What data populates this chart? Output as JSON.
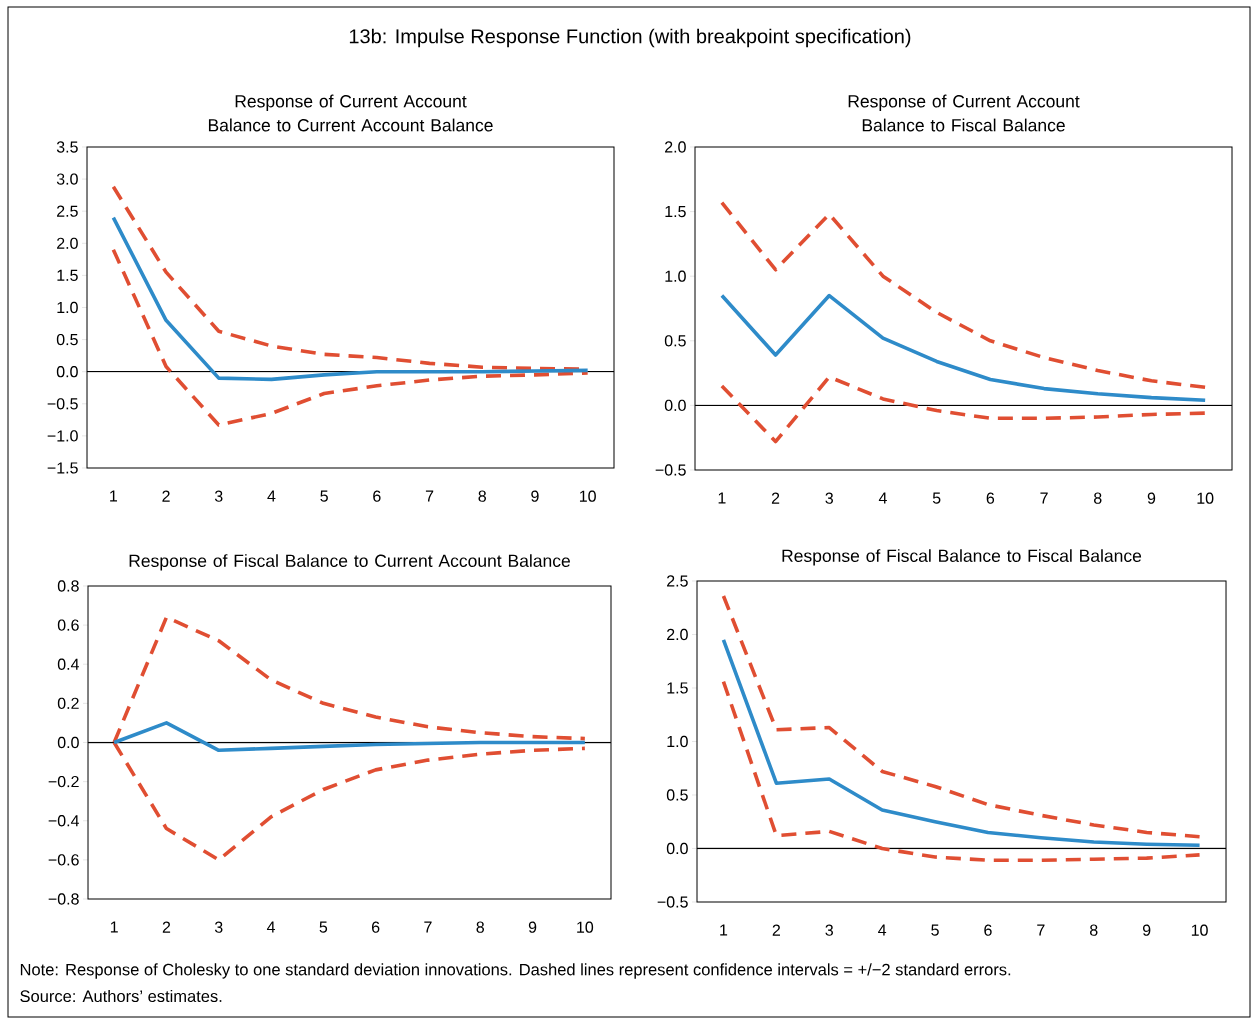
{
  "chart_data": [
    {
      "type": "other",
      "title": "13b: Impulse Response Function (with breakpoint specification)",
      "annotations": [
        "Note: Response of Cholesky to one standard deviation innovations. Dashed lines represent confidence intervals = +/−2 standard errors.",
        "Source: Authors’ estimates."
      ]
    },
    {
      "type": "line",
      "title": "Response of Current Account Balance to Current Account Balance",
      "categories": [
        "1",
        "2",
        "3",
        "4",
        "5",
        "6",
        "7",
        "8",
        "9",
        "10"
      ],
      "ylim": [
        -1.5,
        3.5
      ],
      "yticks": [
        {
          "value": -1.5,
          "label": "−1.5"
        },
        {
          "value": -1.0,
          "label": "−1.0"
        },
        {
          "value": -0.5,
          "label": "−0.5"
        },
        {
          "value": 0,
          "label": "0.0"
        },
        {
          "value": 0.5,
          "label": "0.5"
        },
        {
          "value": 1.0,
          "label": "1.0"
        },
        {
          "value": 1.5,
          "label": "1.5"
        },
        {
          "value": 2.0,
          "label": "2.0"
        },
        {
          "value": 2.5,
          "label": "2.5"
        },
        {
          "value": 3.0,
          "label": "3.0"
        },
        {
          "value": 3.5,
          "label": "3.5"
        }
      ],
      "ref_lines": [
        {
          "axis": "y",
          "value": 0,
          "color": "#000000"
        }
      ],
      "series": [
        {
          "color": "#e04e32",
          "line_style": "dashed",
          "values": [
            2.88,
            1.55,
            0.63,
            0.4,
            0.27,
            0.22,
            0.13,
            0.07,
            0.05,
            0.04
          ]
        },
        {
          "color": "#e04e32",
          "line_style": "dashed",
          "values": [
            1.9,
            0.08,
            -0.83,
            -0.65,
            -0.34,
            -0.22,
            -0.13,
            -0.07,
            -0.05,
            -0.02
          ]
        },
        {
          "color": "#2e8bc9",
          "line_style": "solid",
          "values": [
            2.4,
            0.8,
            -0.1,
            -0.12,
            -0.05,
            0.0,
            0.0,
            0.0,
            0.01,
            0.02
          ]
        }
      ]
    },
    {
      "type": "line",
      "title": "Response of Current Account Balance to Fiscal Balance",
      "categories": [
        "1",
        "2",
        "3",
        "4",
        "5",
        "6",
        "7",
        "8",
        "9",
        "10"
      ],
      "ylim": [
        -0.5,
        2.0
      ],
      "yticks": [
        {
          "value": -0.5,
          "label": "−0.5"
        },
        {
          "value": 0,
          "label": "0.0"
        },
        {
          "value": 0.5,
          "label": "0.5"
        },
        {
          "value": 1.0,
          "label": "1.0"
        },
        {
          "value": 1.5,
          "label": "1.5"
        },
        {
          "value": 2.0,
          "label": "2.0"
        }
      ],
      "ref_lines": [
        {
          "axis": "y",
          "value": 0,
          "color": "#000000"
        }
      ],
      "series": [
        {
          "color": "#e04e32",
          "line_style": "dashed",
          "values": [
            1.57,
            1.05,
            1.48,
            1.0,
            0.72,
            0.5,
            0.37,
            0.27,
            0.19,
            0.14
          ]
        },
        {
          "color": "#e04e32",
          "line_style": "dashed",
          "values": [
            0.15,
            -0.28,
            0.22,
            0.05,
            -0.04,
            -0.1,
            -0.1,
            -0.09,
            -0.07,
            -0.06
          ]
        },
        {
          "color": "#2e8bc9",
          "line_style": "solid",
          "values": [
            0.85,
            0.39,
            0.85,
            0.52,
            0.34,
            0.2,
            0.13,
            0.09,
            0.06,
            0.04
          ]
        }
      ]
    },
    {
      "type": "line",
      "title": "Response of Fiscal Balance to Current Account Balance",
      "categories": [
        "1",
        "2",
        "3",
        "4",
        "5",
        "6",
        "7",
        "8",
        "9",
        "10"
      ],
      "ylim": [
        -0.8,
        0.8
      ],
      "yticks": [
        {
          "value": -0.8,
          "label": "−0.8"
        },
        {
          "value": -0.6,
          "label": "−0.6"
        },
        {
          "value": -0.4,
          "label": "−0.4"
        },
        {
          "value": -0.2,
          "label": "−0.2"
        },
        {
          "value": 0,
          "label": "0.0"
        },
        {
          "value": 0.2,
          "label": "0.2"
        },
        {
          "value": 0.4,
          "label": "0.4"
        },
        {
          "value": 0.6,
          "label": "0.6"
        },
        {
          "value": 0.8,
          "label": "0.8"
        }
      ],
      "ref_lines": [
        {
          "axis": "y",
          "value": 0,
          "color": "#000000"
        }
      ],
      "series": [
        {
          "color": "#e04e32",
          "line_style": "dashed",
          "values": [
            0.0,
            0.64,
            0.52,
            0.32,
            0.2,
            0.13,
            0.08,
            0.05,
            0.03,
            0.02
          ]
        },
        {
          "color": "#e04e32",
          "line_style": "dashed",
          "values": [
            0.0,
            -0.44,
            -0.6,
            -0.38,
            -0.24,
            -0.14,
            -0.09,
            -0.06,
            -0.04,
            -0.03
          ]
        },
        {
          "color": "#2e8bc9",
          "line_style": "solid",
          "values": [
            0.0,
            0.1,
            -0.04,
            -0.03,
            -0.02,
            -0.01,
            -0.005,
            0.0,
            0.0,
            0.0
          ]
        }
      ]
    },
    {
      "type": "line",
      "title": "Response of Fiscal Balance to Fiscal Balance",
      "categories": [
        "1",
        "2",
        "3",
        "4",
        "5",
        "6",
        "7",
        "8",
        "9",
        "10"
      ],
      "ylim": [
        -0.5,
        2.5
      ],
      "yticks": [
        {
          "value": -0.5,
          "label": "−0.5"
        },
        {
          "value": 0,
          "label": "0.0"
        },
        {
          "value": 0.5,
          "label": "0.5"
        },
        {
          "value": 1.0,
          "label": "1.0"
        },
        {
          "value": 1.5,
          "label": "1.5"
        },
        {
          "value": 2.0,
          "label": "2.0"
        },
        {
          "value": 2.5,
          "label": "2.5"
        }
      ],
      "ref_lines": [
        {
          "axis": "y",
          "value": 0,
          "color": "#000000"
        }
      ],
      "series": [
        {
          "color": "#e04e32",
          "line_style": "dashed",
          "values": [
            2.36,
            1.11,
            1.13,
            0.72,
            0.58,
            0.41,
            0.31,
            0.22,
            0.15,
            0.11
          ]
        },
        {
          "color": "#e04e32",
          "line_style": "dashed",
          "values": [
            1.56,
            0.12,
            0.16,
            0.0,
            -0.08,
            -0.11,
            -0.11,
            -0.1,
            -0.09,
            -0.06
          ]
        },
        {
          "color": "#2e8bc9",
          "line_style": "solid",
          "values": [
            1.95,
            0.61,
            0.65,
            0.36,
            0.25,
            0.15,
            0.1,
            0.06,
            0.04,
            0.03
          ]
        }
      ]
    }
  ]
}
